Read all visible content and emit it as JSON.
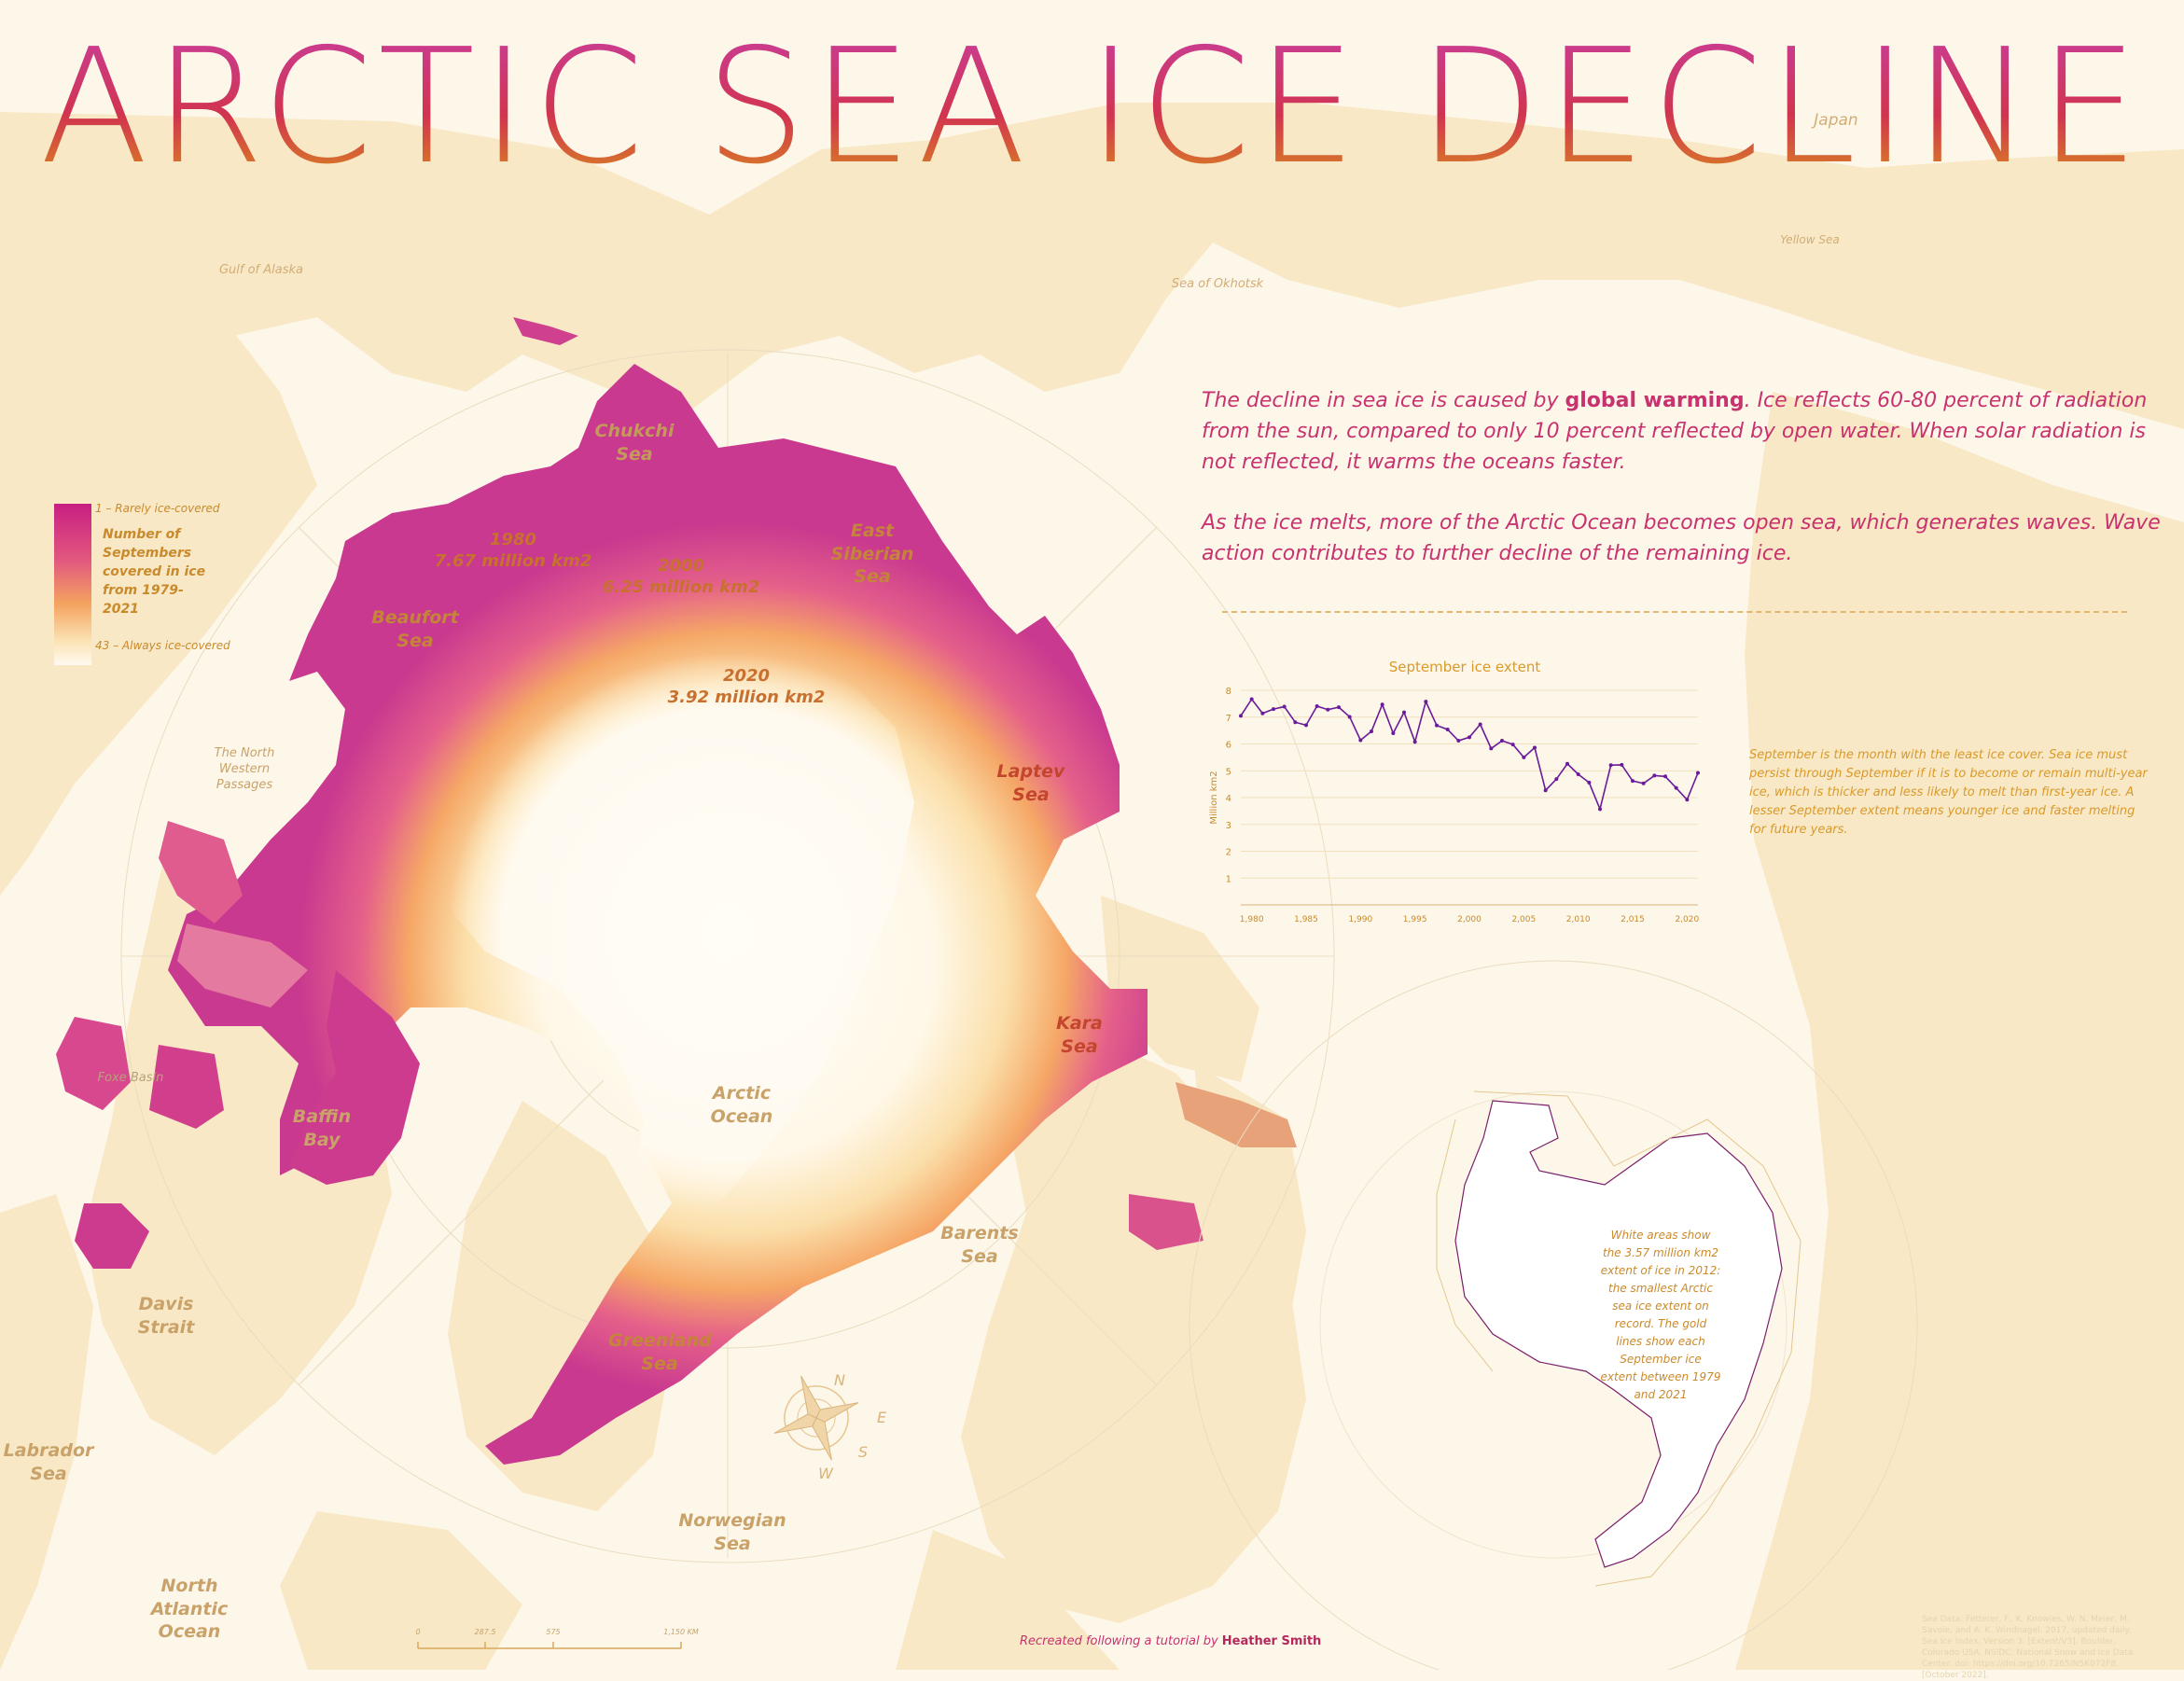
{
  "title": "ARCTIC SEA ICE DECLINE",
  "intro": {
    "p1_before": "The decline in sea ice is caused by ",
    "p1_bold": "global warming",
    "p1_after": ". Ice reflects 60-80 percent of radiation from the sun, compared to only 10 percent reflected by open water. When solar radiation is not reflected, it warms the oceans faster.",
    "p2": "As the ice melts, more of the Arctic Ocean becomes open sea, which generates waves. Wave action contributes to further decline of the remaining ice."
  },
  "legend": {
    "top": "1 – Rarely ice-covered",
    "title": "Number of Septembers covered in ice from 1979-2021",
    "bottom": "43 – Always ice-covered",
    "colors": [
      "#c81e83",
      "#e2587f",
      "#f4a35f",
      "#fbe2b4",
      "#fffaf0"
    ]
  },
  "map_labels": {
    "top_regions": [
      {
        "text": "Gulf of Alaska"
      },
      {
        "text": "Sea of Okhotsk"
      },
      {
        "text": "Japan"
      },
      {
        "text": "Yellow Sea"
      }
    ],
    "seas": [
      {
        "text": "Chukchi Sea"
      },
      {
        "text": "Beaufort Sea"
      },
      {
        "text": "East Siberian Sea"
      },
      {
        "text": "Laptev Sea"
      },
      {
        "text": "Kara Sea"
      },
      {
        "text": "Barents Sea"
      },
      {
        "text": "Arctic Ocean"
      },
      {
        "text": "Greenland Sea"
      },
      {
        "text": "Norwegian Sea"
      },
      {
        "text": "North Atlantic Ocean"
      },
      {
        "text": "Labrador Sea"
      },
      {
        "text": "Davis Strait"
      },
      {
        "text": "Baffin Bay"
      },
      {
        "text": "Foxe Basin"
      },
      {
        "text": "The North Western Passages"
      }
    ],
    "ice_extents": [
      {
        "year": "1980",
        "value": "7.67 million km2"
      },
      {
        "year": "2000",
        "value": "6.25 million km2"
      },
      {
        "year": "2020",
        "value": "3.92 million km2"
      }
    ],
    "compass": [
      "N",
      "E",
      "S",
      "W"
    ]
  },
  "scale_bar": {
    "ticks": [
      "0",
      "287.5",
      "575",
      "1,150 KM"
    ]
  },
  "chart_data": {
    "type": "line",
    "title": "September ice extent",
    "xlabel": "",
    "ylabel": "Million km2",
    "xlim": [
      1979,
      2021
    ],
    "ylim": [
      0,
      8
    ],
    "x_ticks": [
      "1,980",
      "1,985",
      "1,990",
      "1,995",
      "2,000",
      "2,005",
      "2,010",
      "2,015",
      "2,020"
    ],
    "y_ticks": [
      "1",
      "2",
      "3",
      "4",
      "5",
      "6",
      "7",
      "8"
    ],
    "grid": true,
    "color": "#6a1b9a",
    "x": [
      1979,
      1980,
      1981,
      1982,
      1983,
      1984,
      1985,
      1986,
      1987,
      1988,
      1989,
      1990,
      1991,
      1992,
      1993,
      1994,
      1995,
      1996,
      1997,
      1998,
      1999,
      2000,
      2001,
      2002,
      2003,
      2004,
      2005,
      2006,
      2007,
      2008,
      2009,
      2010,
      2011,
      2012,
      2013,
      2014,
      2015,
      2016,
      2017,
      2018,
      2019,
      2020,
      2021
    ],
    "values": [
      7.05,
      7.67,
      7.14,
      7.3,
      7.39,
      6.81,
      6.7,
      7.41,
      7.28,
      7.37,
      7.01,
      6.14,
      6.47,
      7.47,
      6.4,
      7.18,
      6.08,
      7.58,
      6.69,
      6.54,
      6.12,
      6.25,
      6.73,
      5.83,
      6.12,
      5.98,
      5.5,
      5.86,
      4.27,
      4.69,
      5.26,
      4.87,
      4.56,
      3.57,
      5.21,
      5.22,
      4.62,
      4.53,
      4.82,
      4.79,
      4.36,
      3.92,
      4.92
    ]
  },
  "chart_note": "September is the month with the least ice cover. Sea ice must persist through September if it is to become or remain multi-year ice, which is thicker and less likely to melt than first-year ice. A lesser September extent means younger ice and faster melting for future years.",
  "inset_note": "White areas show the 3.57 million km2 extent of ice in 2012: the smallest Arctic sea ice extent on record. The gold lines show each September ice extent between 1979 and 2021",
  "source_note": "Sea Data: Fetterer, F., K. Knowles, W. N. Meier, M. Savoie, and A. K. Windnagel. 2017, updated daily. Sea Ice Index, Version 3. [Extent/V3]. Boulder, Colorado USA. NSIDC: National Snow and Ice Data Center. doi: https://doi.org/10.7265/N5K072F8. [October 2022].",
  "credit": {
    "prefix": "Recreated following a tutorial by ",
    "author": "Heather Smith"
  }
}
